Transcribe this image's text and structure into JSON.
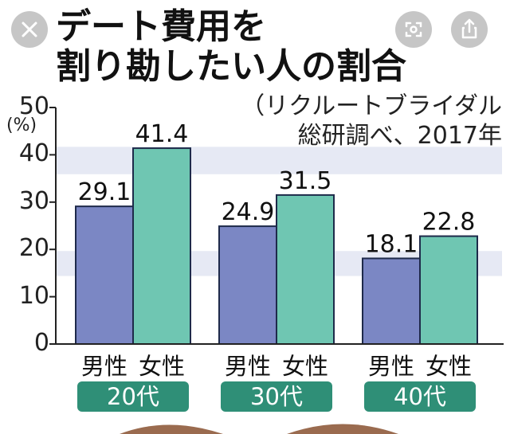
{
  "title_line1": "デート費用を",
  "title_line2": "割り勘したい人の割合",
  "source_line1": "（リクルートブライダル",
  "source_line2": "総研調べ、2017年",
  "colors": {
    "male": "#7b87c4",
    "female": "#6fc6b2",
    "band": "#e6e9f4",
    "pill": "#2f8f77"
  },
  "toolbar": {
    "close_icon": "close-icon",
    "lens_icon": "lens-search-icon",
    "share_icon": "share-icon"
  },
  "chart_data": {
    "type": "bar",
    "title": "デート費用を割り勘したい人の割合",
    "ylabel": "(%)",
    "ylim": [
      0,
      50
    ],
    "yticks": [
      "0",
      "10",
      "20",
      "30",
      "40",
      "50"
    ],
    "groups": [
      {
        "label": "20代",
        "bars": [
          {
            "category": "男性",
            "value": 29.1,
            "label": "29.1"
          },
          {
            "category": "女性",
            "value": 41.4,
            "label": "41.4"
          }
        ]
      },
      {
        "label": "30代",
        "bars": [
          {
            "category": "男性",
            "value": 24.9,
            "label": "24.9"
          },
          {
            "category": "女性",
            "value": 31.5,
            "label": "31.5"
          }
        ]
      },
      {
        "label": "40代",
        "bars": [
          {
            "category": "男性",
            "value": 18.1,
            "label": "18.1"
          },
          {
            "category": "女性",
            "value": 22.8,
            "label": "22.8"
          }
        ]
      }
    ]
  }
}
